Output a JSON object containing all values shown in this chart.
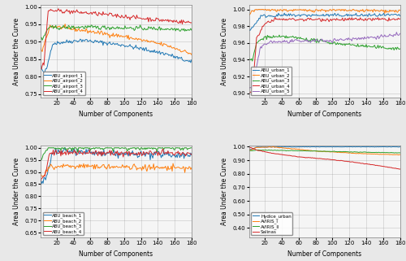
{
  "subplots": [
    {
      "xlabel": "Number of Components",
      "ylabel": "Area Under the Curve",
      "xlim": [
        1,
        180
      ],
      "ylim": [
        0.74,
        1.005
      ],
      "yticks": [
        0.75,
        0.8,
        0.85,
        0.9,
        0.95,
        1.0
      ],
      "xticks": [
        20,
        40,
        60,
        80,
        100,
        120,
        140,
        160,
        180
      ],
      "legend_loc": "lower left",
      "series": [
        {
          "label": "ABU_airport_1",
          "color": "#1f77b4",
          "pts": [
            [
              1,
              0.83
            ],
            [
              4,
              0.81
            ],
            [
              8,
              0.82
            ],
            [
              15,
              0.895
            ],
            [
              50,
              0.905
            ],
            [
              100,
              0.89
            ],
            [
              150,
              0.865
            ],
            [
              180,
              0.84
            ]
          ]
        },
        {
          "label": "ABU_airport_2",
          "color": "#ff7f0e",
          "pts": [
            [
              1,
              0.88
            ],
            [
              3,
              0.875
            ],
            [
              12,
              0.945
            ],
            [
              50,
              0.933
            ],
            [
              100,
              0.915
            ],
            [
              150,
              0.89
            ],
            [
              180,
              0.865
            ]
          ]
        },
        {
          "label": "ABU_airport_3",
          "color": "#2ca02c",
          "pts": [
            [
              1,
              0.91
            ],
            [
              3,
              0.905
            ],
            [
              10,
              0.94
            ],
            [
              50,
              0.942
            ],
            [
              100,
              0.94
            ],
            [
              150,
              0.937
            ],
            [
              180,
              0.935
            ]
          ]
        },
        {
          "label": "ABU_airport_4",
          "color": "#d62728",
          "pts": [
            [
              1,
              0.82
            ],
            [
              5,
              0.84
            ],
            [
              10,
              0.99
            ],
            [
              30,
              0.988
            ],
            [
              80,
              0.978
            ],
            [
              130,
              0.965
            ],
            [
              180,
              0.955
            ]
          ]
        }
      ]
    },
    {
      "xlabel": "Number of Components",
      "ylabel": "Area Under the Curve",
      "xlim": [
        1,
        180
      ],
      "ylim": [
        0.895,
        1.005
      ],
      "yticks": [
        0.9,
        0.92,
        0.94,
        0.96,
        0.98,
        1.0
      ],
      "xticks": [
        20,
        40,
        60,
        80,
        100,
        120,
        140,
        160,
        180
      ],
      "legend_loc": "lower left",
      "series": [
        {
          "label": "ABU_urban_1",
          "color": "#1f77b4",
          "pts": [
            [
              1,
              0.976
            ],
            [
              5,
              0.978
            ],
            [
              15,
              0.992
            ],
            [
              40,
              0.993
            ],
            [
              100,
              0.993
            ],
            [
              180,
              0.993
            ]
          ]
        },
        {
          "label": "ABU_urban_2",
          "color": "#ff7f0e",
          "pts": [
            [
              1,
              0.993
            ],
            [
              5,
              0.998
            ],
            [
              12,
              1.0
            ],
            [
              50,
              0.999
            ],
            [
              100,
              0.999
            ],
            [
              180,
              0.998
            ]
          ]
        },
        {
          "label": "ABU_urban_3",
          "color": "#2ca02c",
          "pts": [
            [
              1,
              0.942
            ],
            [
              5,
              0.938
            ],
            [
              10,
              0.96
            ],
            [
              20,
              0.967
            ],
            [
              50,
              0.967
            ],
            [
              100,
              0.96
            ],
            [
              150,
              0.955
            ],
            [
              180,
              0.953
            ]
          ]
        },
        {
          "label": "ABU_urban_4",
          "color": "#d62728",
          "pts": [
            [
              1,
              0.9
            ],
            [
              5,
              0.902
            ],
            [
              10,
              0.965
            ],
            [
              20,
              0.983
            ],
            [
              30,
              0.988
            ],
            [
              100,
              0.988
            ],
            [
              180,
              0.988
            ]
          ]
        },
        {
          "label": "ABU_urban_5",
          "color": "#9467bd",
          "pts": [
            [
              1,
              0.905
            ],
            [
              5,
              0.908
            ],
            [
              15,
              0.955
            ],
            [
              25,
              0.961
            ],
            [
              60,
              0.962
            ],
            [
              100,
              0.963
            ],
            [
              150,
              0.967
            ],
            [
              180,
              0.97
            ]
          ]
        }
      ]
    },
    {
      "xlabel": "Number of Components",
      "ylabel": "Area Under the Curve",
      "xlim": [
        1,
        180
      ],
      "ylim": [
        0.63,
        1.01
      ],
      "yticks": [
        0.65,
        0.7,
        0.75,
        0.8,
        0.85,
        0.9,
        0.95,
        1.0
      ],
      "xticks": [
        20,
        40,
        60,
        80,
        100,
        120,
        140,
        160,
        180
      ],
      "legend_loc": "lower left",
      "series": [
        {
          "label": "ABU_beach_1",
          "color": "#1f77b4",
          "pts": [
            [
              1,
              0.87
            ],
            [
              3,
              0.855
            ],
            [
              8,
              0.875
            ],
            [
              15,
              0.98
            ],
            [
              40,
              0.985
            ],
            [
              80,
              0.975
            ],
            [
              120,
              0.972
            ],
            [
              160,
              0.972
            ],
            [
              180,
              0.97
            ]
          ]
        },
        {
          "label": "ABU_beach_2",
          "color": "#ff7f0e",
          "pts": [
            [
              1,
              0.88
            ],
            [
              5,
              0.895
            ],
            [
              12,
              0.922
            ],
            [
              30,
              0.925
            ],
            [
              80,
              0.922
            ],
            [
              130,
              0.918
            ],
            [
              180,
              0.915
            ]
          ]
        },
        {
          "label": "ABU_beach_3",
          "color": "#2ca02c",
          "pts": [
            [
              1,
              0.955
            ],
            [
              5,
              0.97
            ],
            [
              10,
              1.0
            ],
            [
              180,
              1.0
            ]
          ]
        },
        {
          "label": "ABU_beach_4",
          "color": "#d62728",
          "pts": [
            [
              1,
              0.87
            ],
            [
              5,
              0.875
            ],
            [
              12,
              0.978
            ],
            [
              30,
              0.98
            ],
            [
              80,
              0.978
            ],
            [
              130,
              0.977
            ],
            [
              180,
              0.975
            ]
          ]
        }
      ]
    },
    {
      "xlabel": "Number of Components",
      "ylabel": "Area Under the Curve",
      "xlim": [
        1,
        180
      ],
      "ylim": [
        0.33,
        1.01
      ],
      "yticks": [
        0.4,
        0.5,
        0.6,
        0.7,
        0.8,
        0.9,
        1.0
      ],
      "xticks": [
        20,
        40,
        60,
        80,
        100,
        120,
        140,
        160,
        180
      ],
      "legend_loc": "lower left",
      "series": [
        {
          "label": "Hydice_urban",
          "color": "#1f77b4",
          "pts": [
            [
              1,
              0.98
            ],
            [
              5,
              0.983
            ],
            [
              10,
              0.997
            ],
            [
              30,
              0.999
            ],
            [
              100,
              0.999
            ],
            [
              180,
              0.999
            ]
          ]
        },
        {
          "label": "AVIRIS_I",
          "color": "#ff7f0e",
          "pts": [
            [
              1,
              0.975
            ],
            [
              5,
              0.978
            ],
            [
              10,
              0.995
            ],
            [
              30,
              0.998
            ],
            [
              80,
              0.968
            ],
            [
              130,
              0.95
            ],
            [
              180,
              0.94
            ]
          ]
        },
        {
          "label": "AVIRIS_II",
          "color": "#2ca02c",
          "pts": [
            [
              1,
              0.968
            ],
            [
              5,
              0.97
            ],
            [
              10,
              0.975
            ],
            [
              30,
              0.973
            ],
            [
              80,
              0.968
            ],
            [
              130,
              0.96
            ],
            [
              180,
              0.955
            ]
          ]
        },
        {
          "label": "Salinas",
          "color": "#d62728",
          "pts": [
            [
              1,
              0.998
            ],
            [
              5,
              0.99
            ],
            [
              10,
              0.975
            ],
            [
              30,
              0.95
            ],
            [
              60,
              0.925
            ],
            [
              90,
              0.91
            ],
            [
              120,
              0.89
            ],
            [
              150,
              0.865
            ],
            [
              180,
              0.835
            ]
          ]
        }
      ]
    }
  ],
  "noise_levels": [
    0.003,
    0.001,
    0.006,
    0.001
  ],
  "beach1_noise": 0.008,
  "fig_bg": "#e8e8e8",
  "ax_bg": "#f5f5f5"
}
